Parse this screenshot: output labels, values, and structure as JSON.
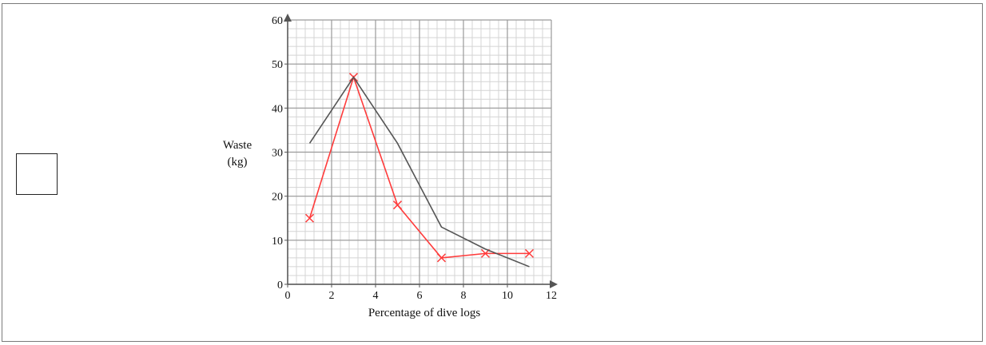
{
  "chart_data": {
    "type": "line",
    "xlabel": "Percentage of dive logs",
    "ylabel_lines": [
      "Waste",
      "(kg)"
    ],
    "xlim": [
      0,
      12
    ],
    "ylim": [
      0,
      60
    ],
    "x_ticks": [
      0,
      2,
      4,
      6,
      8,
      10,
      12
    ],
    "y_ticks": [
      0,
      10,
      20,
      30,
      40,
      50,
      60
    ],
    "grid": true,
    "grid_minor_step": {
      "x": 0.4,
      "y": 2
    },
    "series": [
      {
        "color": "#ff3b3b",
        "marker": "x",
        "points": [
          [
            1,
            15
          ],
          [
            3,
            47
          ],
          [
            5,
            18
          ],
          [
            7,
            6
          ],
          [
            9,
            7
          ],
          [
            11,
            7
          ]
        ]
      },
      {
        "color": "#555555",
        "marker": "none",
        "points": [
          [
            1,
            32
          ],
          [
            3,
            47
          ],
          [
            5,
            32
          ],
          [
            7,
            13
          ],
          [
            9,
            8
          ],
          [
            11,
            4
          ]
        ]
      }
    ]
  }
}
